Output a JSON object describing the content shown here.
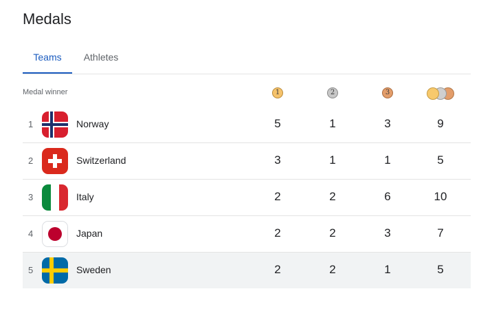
{
  "title": "Medals",
  "tabs": [
    {
      "label": "Teams",
      "active": true
    },
    {
      "label": "Athletes",
      "active": false
    }
  ],
  "table": {
    "header_label": "Medal winner",
    "medal_icons": {
      "gold": "1",
      "silver": "2",
      "bronze": "3"
    },
    "rows": [
      {
        "rank": "1",
        "country": "Norway",
        "flag": "norway-flag-icon",
        "gold": "5",
        "silver": "1",
        "bronze": "3",
        "total": "9"
      },
      {
        "rank": "2",
        "country": "Switzerland",
        "flag": "switzerland-flag-icon",
        "gold": "3",
        "silver": "1",
        "bronze": "1",
        "total": "5"
      },
      {
        "rank": "3",
        "country": "Italy",
        "flag": "italy-flag-icon",
        "gold": "2",
        "silver": "2",
        "bronze": "6",
        "total": "10"
      },
      {
        "rank": "4",
        "country": "Japan",
        "flag": "japan-flag-icon",
        "gold": "2",
        "silver": "2",
        "bronze": "3",
        "total": "7"
      },
      {
        "rank": "5",
        "country": "Sweden",
        "flag": "sweden-flag-icon",
        "gold": "2",
        "silver": "2",
        "bronze": "1",
        "total": "5"
      }
    ]
  },
  "colors": {
    "accent": "#1a5bbf",
    "gold": "#f5c26b",
    "silver": "#c7c7c7",
    "bronze": "#e39d6a",
    "highlight_row": "#f1f3f4"
  }
}
